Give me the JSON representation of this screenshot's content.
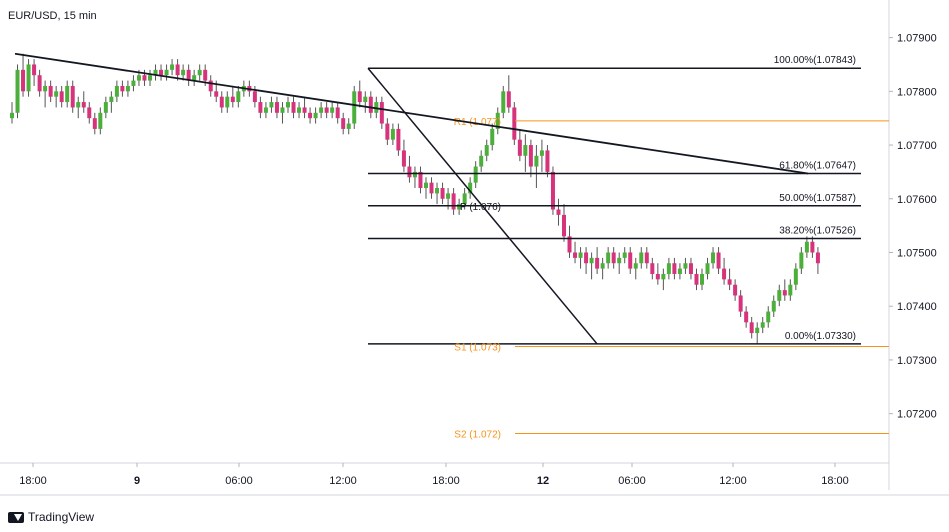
{
  "symbol_label": "EUR/USD, 15 min",
  "branding": "TradingView",
  "colors": {
    "up": "#4cae3b",
    "down": "#d6337c",
    "wick": "#555555",
    "level_black": "#131722",
    "pivot_orange": "#f7931a",
    "axis_text": "#131722",
    "border": "#d1d4dc"
  },
  "chart_data": {
    "type": "candlestick",
    "title": "EUR/USD, 15 min",
    "ylim": [
      1.0711,
      1.0797
    ],
    "y_ticks": [
      "1.07900",
      "1.07800",
      "1.07700",
      "1.07600",
      "1.07500",
      "1.07400",
      "1.07300",
      "1.07200"
    ],
    "y_tick_values": [
      1.079,
      1.078,
      1.077,
      1.076,
      1.075,
      1.074,
      1.073,
      1.072
    ],
    "x_ticks": [
      "18:00",
      "9",
      "06:00",
      "12:00",
      "18:00",
      "12",
      "06:00",
      "12:00",
      "18:00"
    ],
    "bar_count_visible": 220,
    "fibonacci": [
      {
        "label": "100.00%(1.07843)",
        "value": 1.07843
      },
      {
        "label": "61.80%(1.07647)",
        "value": 1.07647
      },
      {
        "label": "50.00%(1.07587)",
        "value": 1.07587
      },
      {
        "label": "38.20%(1.07526)",
        "value": 1.07526
      },
      {
        "label": "0.00%(1.07330)",
        "value": 1.0733
      }
    ],
    "pivots": [
      {
        "label": "R1 (1.077)",
        "value": 1.07745
      },
      {
        "label": "P (1.076)",
        "value": 1.07587
      },
      {
        "label": "S1 (1.073)",
        "value": 1.07325
      },
      {
        "label": "S2 (1.072)",
        "value": 1.07163
      }
    ],
    "trendline": {
      "from": {
        "bar": 1,
        "price": 1.0787
      },
      "to": {
        "bar": 199,
        "price": 1.07647
      }
    },
    "swing_line": {
      "from": {
        "bar": 90,
        "price": 1.07843
      },
      "to": {
        "bar": 147,
        "price": 1.0733
      }
    },
    "fib_start_bar": 90,
    "pivot_start_bar": 126,
    "candles": [
      [
        1.0775,
        1.0778,
        1.0774,
        1.0776
      ],
      [
        1.0776,
        1.0785,
        1.0775,
        1.0784
      ],
      [
        1.0784,
        1.0787,
        1.0779,
        1.078
      ],
      [
        1.078,
        1.0786,
        1.0779,
        1.0785
      ],
      [
        1.0785,
        1.0786,
        1.0781,
        1.0783
      ],
      [
        1.0783,
        1.0784,
        1.0779,
        1.078
      ],
      [
        1.078,
        1.0782,
        1.0777,
        1.0781
      ],
      [
        1.0781,
        1.0782,
        1.0778,
        1.0779
      ],
      [
        1.0779,
        1.0781,
        1.0777,
        1.078
      ],
      [
        1.078,
        1.0781,
        1.0777,
        1.0778
      ],
      [
        1.0778,
        1.0782,
        1.0777,
        1.0781
      ],
      [
        1.0781,
        1.0782,
        1.0776,
        1.0777
      ],
      [
        1.0777,
        1.0779,
        1.0775,
        1.0778
      ],
      [
        1.0778,
        1.078,
        1.0776,
        1.0777
      ],
      [
        1.0777,
        1.0778,
        1.0774,
        1.0775
      ],
      [
        1.0775,
        1.0776,
        1.0772,
        1.0773
      ],
      [
        1.0773,
        1.0777,
        1.0772,
        1.0776
      ],
      [
        1.0776,
        1.0779,
        1.0775,
        1.0778
      ],
      [
        1.0778,
        1.078,
        1.0776,
        1.0779
      ],
      [
        1.0779,
        1.0782,
        1.0778,
        1.0781
      ],
      [
        1.0781,
        1.0782,
        1.0779,
        1.078
      ],
      [
        1.078,
        1.0782,
        1.0779,
        1.0781
      ],
      [
        1.0781,
        1.0783,
        1.078,
        1.0782
      ],
      [
        1.0782,
        1.0784,
        1.0781,
        1.0783
      ],
      [
        1.0783,
        1.0784,
        1.0781,
        1.0782
      ],
      [
        1.0782,
        1.0784,
        1.0781,
        1.0783
      ],
      [
        1.0783,
        1.0785,
        1.0782,
        1.0784
      ],
      [
        1.0784,
        1.0785,
        1.0782,
        1.0783
      ],
      [
        1.0783,
        1.0785,
        1.0782,
        1.0784
      ],
      [
        1.0784,
        1.0786,
        1.0783,
        1.0785
      ],
      [
        1.0785,
        1.0786,
        1.0782,
        1.0783
      ],
      [
        1.0783,
        1.0785,
        1.0782,
        1.0784
      ],
      [
        1.0784,
        1.0785,
        1.0781,
        1.0782
      ],
      [
        1.0782,
        1.0784,
        1.0781,
        1.0783
      ],
      [
        1.0783,
        1.0785,
        1.0782,
        1.0784
      ],
      [
        1.0784,
        1.0785,
        1.0781,
        1.0782
      ],
      [
        1.0782,
        1.0783,
        1.0779,
        1.078
      ],
      [
        1.078,
        1.0782,
        1.0778,
        1.0779
      ],
      [
        1.0779,
        1.078,
        1.0776,
        1.0777
      ],
      [
        1.0777,
        1.078,
        1.0776,
        1.0779
      ],
      [
        1.0779,
        1.0781,
        1.0777,
        1.0778
      ],
      [
        1.0778,
        1.0781,
        1.0777,
        1.078
      ],
      [
        1.078,
        1.0782,
        1.0779,
        1.0781
      ],
      [
        1.0781,
        1.0782,
        1.0779,
        1.078
      ],
      [
        1.078,
        1.0781,
        1.0777,
        1.0778
      ],
      [
        1.0778,
        1.0779,
        1.0775,
        1.0776
      ],
      [
        1.0776,
        1.0778,
        1.0775,
        1.0777
      ],
      [
        1.0777,
        1.0779,
        1.0776,
        1.0778
      ],
      [
        1.0778,
        1.0779,
        1.0775,
        1.0776
      ],
      [
        1.0776,
        1.0778,
        1.0774,
        1.0777
      ],
      [
        1.0777,
        1.0779,
        1.0776,
        1.0778
      ],
      [
        1.0778,
        1.0779,
        1.0775,
        1.0776
      ],
      [
        1.0776,
        1.0778,
        1.0775,
        1.0777
      ],
      [
        1.0777,
        1.0779,
        1.0775,
        1.0776
      ],
      [
        1.0776,
        1.0777,
        1.0774,
        1.0775
      ],
      [
        1.0775,
        1.0777,
        1.0774,
        1.0776
      ],
      [
        1.0776,
        1.0778,
        1.0775,
        1.0777
      ],
      [
        1.0777,
        1.0778,
        1.0775,
        1.0776
      ],
      [
        1.0776,
        1.0778,
        1.0775,
        1.0777
      ],
      [
        1.0777,
        1.0778,
        1.0774,
        1.0775
      ],
      [
        1.0775,
        1.0776,
        1.0772,
        1.0773
      ],
      [
        1.0773,
        1.0775,
        1.0772,
        1.0774
      ],
      [
        1.0774,
        1.0781,
        1.0773,
        1.078
      ],
      [
        1.078,
        1.0782,
        1.0777,
        1.0778
      ],
      [
        1.0778,
        1.078,
        1.0776,
        1.0779
      ],
      [
        1.0779,
        1.078,
        1.0775,
        1.0776
      ],
      [
        1.0776,
        1.0779,
        1.0775,
        1.0778
      ],
      [
        1.0778,
        1.0779,
        1.0773,
        1.0774
      ],
      [
        1.0774,
        1.0775,
        1.077,
        1.0771
      ],
      [
        1.0771,
        1.0774,
        1.077,
        1.0773
      ],
      [
        1.0773,
        1.0774,
        1.0768,
        1.0769
      ],
      [
        1.0769,
        1.0771,
        1.0765,
        1.0766
      ],
      [
        1.0766,
        1.0768,
        1.0763,
        1.0764
      ],
      [
        1.0764,
        1.0766,
        1.0762,
        1.0765
      ],
      [
        1.0765,
        1.0766,
        1.0761,
        1.0762
      ],
      [
        1.0762,
        1.0764,
        1.076,
        1.0763
      ],
      [
        1.0763,
        1.0764,
        1.076,
        1.0761
      ],
      [
        1.0761,
        1.0763,
        1.0759,
        1.0762
      ],
      [
        1.0762,
        1.0763,
        1.0759,
        1.076
      ],
      [
        1.076,
        1.0762,
        1.0758,
        1.0761
      ],
      [
        1.0761,
        1.0762,
        1.0757,
        1.0758
      ],
      [
        1.0758,
        1.076,
        1.0757,
        1.0759
      ],
      [
        1.0759,
        1.0762,
        1.0758,
        1.0761
      ],
      [
        1.0761,
        1.0764,
        1.076,
        1.0763
      ],
      [
        1.0763,
        1.0767,
        1.0762,
        1.0766
      ],
      [
        1.0766,
        1.0769,
        1.0765,
        1.0768
      ],
      [
        1.0768,
        1.0771,
        1.0767,
        1.077
      ],
      [
        1.077,
        1.0774,
        1.0769,
        1.0773
      ],
      [
        1.0773,
        1.0777,
        1.0772,
        1.0776
      ],
      [
        1.0776,
        1.0781,
        1.0775,
        1.078
      ],
      [
        1.078,
        1.0783,
        1.0776,
        1.0777
      ],
      [
        1.0777,
        1.0778,
        1.077,
        1.0771
      ],
      [
        1.0771,
        1.0773,
        1.0767,
        1.0768
      ],
      [
        1.0768,
        1.0772,
        1.0765,
        1.077
      ],
      [
        1.077,
        1.0771,
        1.0764,
        1.0766
      ],
      [
        1.0766,
        1.077,
        1.0762,
        1.0768
      ],
      [
        1.0768,
        1.0771,
        1.0765,
        1.0769
      ],
      [
        1.0769,
        1.077,
        1.0764,
        1.0765
      ],
      [
        1.0765,
        1.0766,
        1.0757,
        1.0758
      ],
      [
        1.0758,
        1.076,
        1.0755,
        1.0757
      ],
      [
        1.0757,
        1.0759,
        1.0752,
        1.0753
      ],
      [
        1.0753,
        1.0755,
        1.0749,
        1.075
      ],
      [
        1.075,
        1.0752,
        1.0748,
        1.0749
      ],
      [
        1.0749,
        1.0751,
        1.0747,
        1.075
      ],
      [
        1.075,
        1.0751,
        1.0746,
        1.0748
      ],
      [
        1.0748,
        1.075,
        1.0745,
        1.0749
      ],
      [
        1.0749,
        1.0751,
        1.0746,
        1.0747
      ],
      [
        1.0747,
        1.0749,
        1.0745,
        1.0748
      ],
      [
        1.0748,
        1.0751,
        1.0747,
        1.075
      ],
      [
        1.075,
        1.0751,
        1.0747,
        1.0748
      ],
      [
        1.0748,
        1.075,
        1.0746,
        1.0749
      ],
      [
        1.0749,
        1.0751,
        1.0748,
        1.075
      ],
      [
        1.075,
        1.0751,
        1.0746,
        1.0747
      ],
      [
        1.0747,
        1.0749,
        1.0745,
        1.0748
      ],
      [
        1.0748,
        1.0751,
        1.0747,
        1.075
      ],
      [
        1.075,
        1.0751,
        1.0747,
        1.0748
      ],
      [
        1.0748,
        1.0749,
        1.0745,
        1.0746
      ],
      [
        1.0746,
        1.0748,
        1.0744,
        1.0745
      ],
      [
        1.0745,
        1.0747,
        1.0743,
        1.0746
      ],
      [
        1.0746,
        1.0749,
        1.0745,
        1.0748
      ],
      [
        1.0748,
        1.0749,
        1.0745,
        1.0746
      ],
      [
        1.0746,
        1.0748,
        1.0745,
        1.0747
      ],
      [
        1.0747,
        1.0749,
        1.0746,
        1.0748
      ],
      [
        1.0748,
        1.0749,
        1.0745,
        1.0746
      ],
      [
        1.0746,
        1.0747,
        1.0743,
        1.0744
      ],
      [
        1.0744,
        1.0747,
        1.0743,
        1.0746
      ],
      [
        1.0746,
        1.0749,
        1.0745,
        1.0748
      ],
      [
        1.0748,
        1.0751,
        1.0747,
        1.075
      ],
      [
        1.075,
        1.0751,
        1.0746,
        1.0747
      ],
      [
        1.0747,
        1.0749,
        1.0744,
        1.0745
      ],
      [
        1.0745,
        1.0747,
        1.0743,
        1.0744
      ],
      [
        1.0744,
        1.0745,
        1.0741,
        1.0742
      ],
      [
        1.0742,
        1.0743,
        1.0738,
        1.0739
      ],
      [
        1.0739,
        1.074,
        1.0736,
        1.0737
      ],
      [
        1.0737,
        1.0738,
        1.0734,
        1.0735
      ],
      [
        1.0735,
        1.0737,
        1.0733,
        1.0736
      ],
      [
        1.0736,
        1.0738,
        1.0735,
        1.0737
      ],
      [
        1.0737,
        1.074,
        1.0736,
        1.0739
      ],
      [
        1.0739,
        1.0742,
        1.0738,
        1.0741
      ],
      [
        1.0741,
        1.0744,
        1.074,
        1.0743
      ],
      [
        1.0743,
        1.0745,
        1.0741,
        1.0742
      ],
      [
        1.0742,
        1.0745,
        1.0741,
        1.0744
      ],
      [
        1.0744,
        1.0748,
        1.0743,
        1.0747
      ],
      [
        1.0747,
        1.0751,
        1.0746,
        1.075
      ],
      [
        1.075,
        1.0753,
        1.0749,
        1.0752
      ],
      [
        1.0752,
        1.0753,
        1.0749,
        1.075
      ],
      [
        1.075,
        1.0751,
        1.0746,
        1.0748
      ]
    ],
    "candle_start_bar": 1,
    "candle_stride": 1.38
  }
}
